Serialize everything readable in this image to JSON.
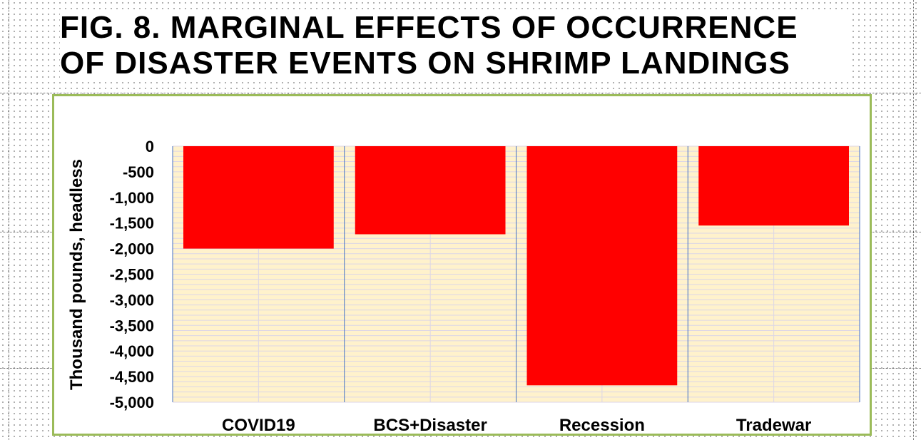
{
  "figure": {
    "title_line1": "FIG. 8. MARGINAL EFFECTS OF OCCURRENCE",
    "title_line2": "OF DISASTER EVENTS ON SHRIMP LANDINGS"
  },
  "colors": {
    "bar": "#ff0000",
    "plot_bg": "#fff2cc",
    "gridline": "#dcd6e6",
    "frame": "#9bbb59",
    "separator": "#4472c4"
  },
  "chart_data": {
    "type": "bar",
    "title": "FIG. 8. MARGINAL EFFECTS OF OCCURRENCE OF DISASTER EVENTS ON SHRIMP LANDINGS",
    "xlabel": "",
    "ylabel": "Thousand pounds, headless",
    "categories": [
      "COVID19",
      "BCS+Disaster",
      "Recession",
      "Tradewar"
    ],
    "values": [
      -2000,
      -1720,
      -4670,
      -1550
    ],
    "ylim": [
      -5000,
      0
    ],
    "yticks": [
      0,
      -500,
      -1000,
      -1500,
      -2000,
      -2500,
      -3000,
      -3500,
      -4000,
      -4500,
      -5000
    ],
    "ytick_labels": [
      "0",
      "-500",
      "-1,000",
      "-1,500",
      "-2,000",
      "-2,500",
      "-3,000",
      "-3,500",
      "-4,000",
      "-4,500",
      "-5,000"
    ],
    "grid": true,
    "legend": "none"
  }
}
